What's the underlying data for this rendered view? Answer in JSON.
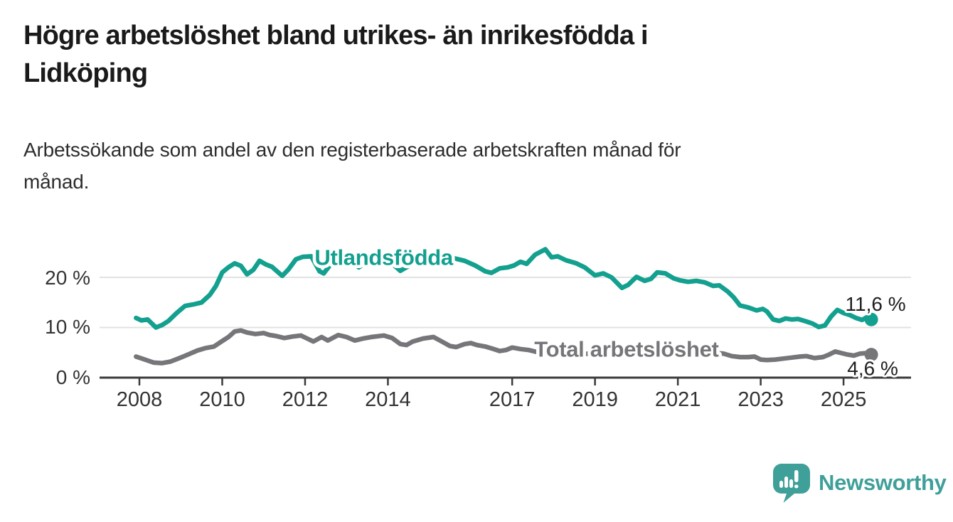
{
  "header": {
    "title_lines": [
      "Högre arbetslöshet bland utrikes- än inrikesfödda i",
      "Lidköping"
    ],
    "subtitle_lines": [
      "Arbetssökande som andel av den registerbaserade arbetskraften månad för",
      "månad."
    ]
  },
  "footer": {
    "brand": "Newsworthy",
    "brand_color": "#3f9f99",
    "logo_icon": "speech-bubble-bar-chart-icon"
  },
  "chart_data": {
    "type": "line",
    "x_unit": "year (monthly series)",
    "y_unit": "percent",
    "xlim": [
      2007.9,
      2025.8
    ],
    "ylim": [
      0,
      27
    ],
    "grid": "horizontal",
    "legend": "inline-series-labels",
    "x_ticks": [
      {
        "year": 2008,
        "label": "2008"
      },
      {
        "year": 2010,
        "label": "2010"
      },
      {
        "year": 2012,
        "label": "2012"
      },
      {
        "year": 2014,
        "label": "2014"
      },
      {
        "year": 2017,
        "label": "2017"
      },
      {
        "year": 2019,
        "label": "2019"
      },
      {
        "year": 2021,
        "label": "2021"
      },
      {
        "year": 2023,
        "label": "2023"
      },
      {
        "year": 2025,
        "label": "2025"
      }
    ],
    "y_ticks": [
      {
        "value": 0,
        "label": "0 %"
      },
      {
        "value": 10,
        "label": "10 %"
      },
      {
        "value": 20,
        "label": "20 %"
      }
    ],
    "series": [
      {
        "name": "Utlandsfödda",
        "color": "#13a08f",
        "end_value": 11.6,
        "end_value_label": "11,6 %",
        "label_at": {
          "year": 2013.9,
          "pct": 22.5
        },
        "points": [
          [
            2007.92,
            11.9
          ],
          [
            2008.05,
            11.4
          ],
          [
            2008.2,
            11.6
          ],
          [
            2008.4,
            10.0
          ],
          [
            2008.55,
            10.5
          ],
          [
            2008.7,
            11.3
          ],
          [
            2008.9,
            12.9
          ],
          [
            2009.1,
            14.3
          ],
          [
            2009.3,
            14.6
          ],
          [
            2009.5,
            15.0
          ],
          [
            2009.7,
            16.5
          ],
          [
            2009.85,
            18.3
          ],
          [
            2010.0,
            21.0
          ],
          [
            2010.15,
            22.0
          ],
          [
            2010.3,
            22.8
          ],
          [
            2010.45,
            22.3
          ],
          [
            2010.6,
            20.6
          ],
          [
            2010.75,
            21.5
          ],
          [
            2010.9,
            23.3
          ],
          [
            2011.05,
            22.6
          ],
          [
            2011.2,
            22.1
          ],
          [
            2011.45,
            20.3
          ],
          [
            2011.6,
            21.6
          ],
          [
            2011.78,
            23.6
          ],
          [
            2011.95,
            24.1
          ],
          [
            2012.15,
            24.2
          ],
          [
            2012.35,
            21.2
          ],
          [
            2012.45,
            20.8
          ],
          [
            2012.6,
            22.4
          ],
          [
            2012.8,
            23.6
          ],
          [
            2013.0,
            23.9
          ],
          [
            2013.3,
            22.0
          ],
          [
            2013.5,
            23.2
          ],
          [
            2013.75,
            23.9
          ],
          [
            2014.0,
            23.5
          ],
          [
            2014.3,
            21.3
          ],
          [
            2014.55,
            22.5
          ],
          [
            2014.8,
            23.4
          ],
          [
            2015.05,
            23.8
          ],
          [
            2015.3,
            23.0
          ],
          [
            2015.6,
            23.8
          ],
          [
            2015.85,
            23.3
          ],
          [
            2016.1,
            22.4
          ],
          [
            2016.35,
            21.2
          ],
          [
            2016.5,
            20.9
          ],
          [
            2016.7,
            21.8
          ],
          [
            2016.9,
            22.0
          ],
          [
            2017.05,
            22.4
          ],
          [
            2017.2,
            23.1
          ],
          [
            2017.35,
            22.7
          ],
          [
            2017.55,
            24.5
          ],
          [
            2017.8,
            25.6
          ],
          [
            2017.95,
            24.0
          ],
          [
            2018.1,
            24.2
          ],
          [
            2018.3,
            23.4
          ],
          [
            2018.55,
            22.8
          ],
          [
            2018.75,
            22.0
          ],
          [
            2019.0,
            20.4
          ],
          [
            2019.2,
            20.8
          ],
          [
            2019.4,
            20.0
          ],
          [
            2019.65,
            17.9
          ],
          [
            2019.8,
            18.5
          ],
          [
            2020.0,
            20.1
          ],
          [
            2020.2,
            19.3
          ],
          [
            2020.35,
            19.7
          ],
          [
            2020.5,
            21.0
          ],
          [
            2020.7,
            20.8
          ],
          [
            2020.9,
            19.8
          ],
          [
            2021.05,
            19.4
          ],
          [
            2021.25,
            19.1
          ],
          [
            2021.45,
            19.3
          ],
          [
            2021.65,
            19.0
          ],
          [
            2021.85,
            18.3
          ],
          [
            2022.0,
            18.4
          ],
          [
            2022.2,
            17.2
          ],
          [
            2022.35,
            16.0
          ],
          [
            2022.5,
            14.4
          ],
          [
            2022.7,
            14.0
          ],
          [
            2022.9,
            13.4
          ],
          [
            2023.05,
            13.7
          ],
          [
            2023.15,
            13.2
          ],
          [
            2023.3,
            11.6
          ],
          [
            2023.45,
            11.3
          ],
          [
            2023.6,
            11.8
          ],
          [
            2023.75,
            11.6
          ],
          [
            2023.9,
            11.7
          ],
          [
            2024.1,
            11.2
          ],
          [
            2024.25,
            10.8
          ],
          [
            2024.4,
            10.1
          ],
          [
            2024.55,
            10.4
          ],
          [
            2024.7,
            12.2
          ],
          [
            2024.85,
            13.5
          ],
          [
            2025.0,
            12.9
          ],
          [
            2025.15,
            12.5
          ],
          [
            2025.3,
            11.9
          ],
          [
            2025.45,
            11.5
          ],
          [
            2025.55,
            12.0
          ],
          [
            2025.67,
            11.6
          ]
        ]
      },
      {
        "name": "Total arbetslöshet",
        "color": "#76767a",
        "end_value": 4.6,
        "end_value_label": "4,6 %",
        "label_at": {
          "year": 2019.76,
          "pct": 4.2
        },
        "points": [
          [
            2007.92,
            4.2
          ],
          [
            2008.1,
            3.7
          ],
          [
            2008.35,
            3.0
          ],
          [
            2008.55,
            2.9
          ],
          [
            2008.75,
            3.2
          ],
          [
            2009.0,
            4.0
          ],
          [
            2009.2,
            4.7
          ],
          [
            2009.4,
            5.4
          ],
          [
            2009.6,
            5.9
          ],
          [
            2009.8,
            6.2
          ],
          [
            2010.0,
            7.3
          ],
          [
            2010.15,
            8.1
          ],
          [
            2010.3,
            9.2
          ],
          [
            2010.45,
            9.4
          ],
          [
            2010.6,
            9.0
          ],
          [
            2010.8,
            8.7
          ],
          [
            2011.0,
            8.9
          ],
          [
            2011.15,
            8.5
          ],
          [
            2011.3,
            8.3
          ],
          [
            2011.5,
            7.9
          ],
          [
            2011.7,
            8.2
          ],
          [
            2011.9,
            8.4
          ],
          [
            2012.05,
            7.8
          ],
          [
            2012.2,
            7.2
          ],
          [
            2012.4,
            8.1
          ],
          [
            2012.55,
            7.4
          ],
          [
            2012.8,
            8.5
          ],
          [
            2013.0,
            8.1
          ],
          [
            2013.2,
            7.4
          ],
          [
            2013.4,
            7.8
          ],
          [
            2013.6,
            8.1
          ],
          [
            2013.9,
            8.4
          ],
          [
            2014.1,
            7.9
          ],
          [
            2014.3,
            6.7
          ],
          [
            2014.45,
            6.5
          ],
          [
            2014.6,
            7.2
          ],
          [
            2014.85,
            7.8
          ],
          [
            2015.1,
            8.1
          ],
          [
            2015.3,
            7.2
          ],
          [
            2015.5,
            6.3
          ],
          [
            2015.65,
            6.1
          ],
          [
            2015.85,
            6.7
          ],
          [
            2016.0,
            6.9
          ],
          [
            2016.15,
            6.5
          ],
          [
            2016.35,
            6.2
          ],
          [
            2016.55,
            5.7
          ],
          [
            2016.7,
            5.3
          ],
          [
            2016.85,
            5.5
          ],
          [
            2017.0,
            6.0
          ],
          [
            2017.2,
            5.7
          ],
          [
            2017.4,
            5.5
          ],
          [
            2017.6,
            5.1
          ],
          [
            2017.8,
            5.0
          ],
          [
            2018.0,
            5.2
          ],
          [
            2018.3,
            4.9
          ],
          [
            2018.6,
            4.7
          ],
          [
            2018.9,
            4.8
          ],
          [
            2019.2,
            4.6
          ],
          [
            2019.5,
            4.4
          ],
          [
            2019.8,
            4.6
          ],
          [
            2020.05,
            4.9
          ],
          [
            2020.3,
            5.9
          ],
          [
            2020.5,
            6.3
          ],
          [
            2020.8,
            6.0
          ],
          [
            2021.0,
            5.8
          ],
          [
            2021.3,
            5.4
          ],
          [
            2021.6,
            5.1
          ],
          [
            2021.9,
            4.9
          ],
          [
            2022.1,
            4.8
          ],
          [
            2022.3,
            4.3
          ],
          [
            2022.5,
            4.1
          ],
          [
            2022.7,
            4.1
          ],
          [
            2022.85,
            4.2
          ],
          [
            2023.0,
            3.6
          ],
          [
            2023.15,
            3.5
          ],
          [
            2023.35,
            3.6
          ],
          [
            2023.55,
            3.8
          ],
          [
            2023.75,
            4.0
          ],
          [
            2023.95,
            4.2
          ],
          [
            2024.1,
            4.3
          ],
          [
            2024.3,
            3.9
          ],
          [
            2024.5,
            4.1
          ],
          [
            2024.65,
            4.6
          ],
          [
            2024.8,
            5.2
          ],
          [
            2024.95,
            4.9
          ],
          [
            2025.1,
            4.6
          ],
          [
            2025.25,
            4.4
          ],
          [
            2025.4,
            4.8
          ],
          [
            2025.55,
            4.9
          ],
          [
            2025.67,
            4.6
          ]
        ]
      }
    ]
  }
}
